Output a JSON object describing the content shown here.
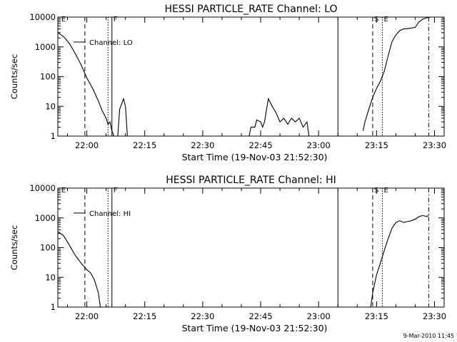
{
  "footer": "9-Mar-2010 11:45",
  "chart_data": [
    {
      "type": "line",
      "title": "HESSI PARTICLE_RATE Channel: LO",
      "xlabel": "Start Time (19-Nov-03 21:52:30)",
      "ylabel": "Counts/sec",
      "yscale": "log",
      "ylim": [
        1,
        10000
      ],
      "xlim": [
        "21:52:30",
        "23:32:30"
      ],
      "x_ticks": [
        "22:00",
        "22:15",
        "22:30",
        "22:45",
        "23:00",
        "23:15",
        "23:30"
      ],
      "y_ticks": [
        {
          "value": 1,
          "label": "1"
        },
        {
          "value": 10,
          "label": "10"
        },
        {
          "value": 100,
          "label": "100"
        },
        {
          "value": 1000,
          "label": "1000"
        },
        {
          "value": 10000,
          "label": "10000"
        }
      ],
      "legend": {
        "label": "Channel: LO",
        "position": "top-left"
      },
      "markers": [
        {
          "label": "E",
          "time": "21:53:00",
          "style": "none"
        },
        {
          "label": "",
          "time": "21:59:30",
          "style": "dashed"
        },
        {
          "label": "",
          "time": "22:05:30",
          "style": "dotted"
        },
        {
          "label": "F",
          "time": "22:06:30",
          "style": "solid"
        },
        {
          "label": "",
          "time": "23:05:00",
          "style": "solid"
        },
        {
          "label": "S",
          "time": "23:14:00",
          "style": "dashed"
        },
        {
          "label": "E",
          "time": "23:16:30",
          "style": "dotted"
        },
        {
          "label": "",
          "time": "23:28:30",
          "style": "dashdot"
        }
      ],
      "series": [
        {
          "segments": [
            [
              [
                "21:52:30",
                3000
              ],
              [
                "21:54:00",
                2200
              ],
              [
                "21:55:30",
                1300
              ],
              [
                "21:57:00",
                600
              ],
              [
                "21:58:30",
                250
              ],
              [
                "22:00:00",
                90
              ],
              [
                "22:01:30",
                40
              ],
              [
                "22:03:00",
                15
              ],
              [
                "22:04:00",
                7
              ],
              [
                "22:05:00",
                4
              ],
              [
                "22:05:30",
                2.5
              ],
              [
                "22:06:00",
                3
              ],
              [
                "22:06:30",
                1.5
              ],
              [
                "22:07:00",
                1
              ]
            ],
            [
              [
                "22:08:00",
                1
              ],
              [
                "22:08:30",
                8
              ],
              [
                "22:09:30",
                18
              ],
              [
                "22:10:00",
                10
              ],
              [
                "22:10:30",
                1
              ]
            ],
            [
              [
                "22:42:00",
                1
              ],
              [
                "22:42:30",
                2
              ],
              [
                "22:43:30",
                2
              ],
              [
                "22:44:00",
                3.5
              ],
              [
                "22:45:00",
                3
              ],
              [
                "22:45:30",
                2
              ],
              [
                "22:46:00",
                3
              ],
              [
                "22:47:00",
                18
              ],
              [
                "22:48:00",
                10
              ],
              [
                "22:49:00",
                6
              ],
              [
                "22:50:00",
                3
              ],
              [
                "22:51:00",
                4
              ],
              [
                "22:52:00",
                2.5
              ],
              [
                "22:53:00",
                4
              ],
              [
                "22:54:00",
                3
              ],
              [
                "22:55:00",
                4
              ],
              [
                "22:56:00",
                2
              ],
              [
                "22:57:00",
                3
              ],
              [
                "22:57:30",
                1
              ]
            ],
            [
              [
                "23:11:30",
                1.5
              ],
              [
                "23:12:00",
                3
              ],
              [
                "23:13:00",
                8
              ],
              [
                "23:14:00",
                20
              ],
              [
                "23:15:00",
                40
              ],
              [
                "23:16:00",
                70
              ],
              [
                "23:17:00",
                150
              ],
              [
                "23:18:00",
                500
              ],
              [
                "23:19:00",
                1500
              ],
              [
                "23:20:00",
                2500
              ],
              [
                "23:21:00",
                3500
              ],
              [
                "23:22:00",
                4000
              ],
              [
                "23:23:00",
                4100
              ],
              [
                "23:24:00",
                4300
              ],
              [
                "23:25:00",
                4500
              ],
              [
                "23:26:00",
                7000
              ],
              [
                "23:27:00",
                8500
              ],
              [
                "23:28:00",
                9500
              ],
              [
                "23:29:00",
                10000
              ]
            ]
          ]
        }
      ]
    },
    {
      "type": "line",
      "title": "HESSI PARTICLE_RATE Channel: HI",
      "xlabel": "Start Time (19-Nov-03 21:52:30)",
      "ylabel": "Counts/sec",
      "yscale": "log",
      "ylim": [
        1,
        10000
      ],
      "xlim": [
        "21:52:30",
        "23:32:30"
      ],
      "x_ticks": [
        "22:00",
        "22:15",
        "22:30",
        "22:45",
        "23:00",
        "23:15",
        "23:30"
      ],
      "y_ticks": [
        {
          "value": 1,
          "label": "1"
        },
        {
          "value": 10,
          "label": "10"
        },
        {
          "value": 100,
          "label": "100"
        },
        {
          "value": 1000,
          "label": "1000"
        },
        {
          "value": 10000,
          "label": "10000"
        }
      ],
      "legend": {
        "label": "Channel: HI",
        "position": "top-left"
      },
      "markers": [
        {
          "label": "E",
          "time": "21:53:00",
          "style": "none"
        },
        {
          "label": "",
          "time": "21:59:30",
          "style": "dashed"
        },
        {
          "label": "",
          "time": "22:05:30",
          "style": "dotted"
        },
        {
          "label": "F",
          "time": "22:06:30",
          "style": "solid"
        },
        {
          "label": "",
          "time": "23:05:00",
          "style": "solid"
        },
        {
          "label": "S",
          "time": "23:14:00",
          "style": "dashed"
        },
        {
          "label": "E",
          "time": "23:16:30",
          "style": "dotted"
        },
        {
          "label": "",
          "time": "23:28:30",
          "style": "dashdot"
        }
      ],
      "series": [
        {
          "segments": [
            [
              [
                "21:52:30",
                350
              ],
              [
                "21:54:00",
                250
              ],
              [
                "21:55:30",
                120
              ],
              [
                "21:57:00",
                55
              ],
              [
                "21:58:30",
                30
              ],
              [
                "22:00:00",
                18
              ],
              [
                "22:01:00",
                14
              ],
              [
                "22:02:00",
                8
              ],
              [
                "22:03:00",
                3
              ],
              [
                "22:03:30",
                1
              ]
            ],
            [
              [
                "23:13:30",
                1
              ],
              [
                "23:14:00",
                3
              ],
              [
                "23:15:00",
                12
              ],
              [
                "23:16:00",
                30
              ],
              [
                "23:17:00",
                80
              ],
              [
                "23:18:00",
                200
              ],
              [
                "23:19:00",
                450
              ],
              [
                "23:20:00",
                700
              ],
              [
                "23:21:00",
                800
              ],
              [
                "23:22:00",
                700
              ],
              [
                "23:23:00",
                750
              ],
              [
                "23:24:00",
                800
              ],
              [
                "23:25:00",
                900
              ],
              [
                "23:26:00",
                1100
              ],
              [
                "23:27:00",
                1200
              ],
              [
                "23:28:00",
                1100
              ],
              [
                "23:28:30",
                1200
              ]
            ]
          ]
        }
      ]
    }
  ]
}
